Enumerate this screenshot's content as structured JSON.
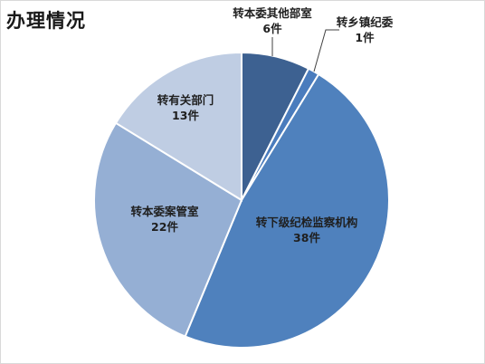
{
  "title": "办理情况",
  "chart_data": {
    "type": "pie",
    "title": "办理情况",
    "slices": [
      {
        "name": "转本委其他部室",
        "value": 6,
        "value_label": "6件",
        "color": "#3d6191"
      },
      {
        "name": "转乡镇纪委",
        "value": 1,
        "value_label": "1件",
        "color": "#4a7cbd"
      },
      {
        "name": "转下级纪检监察机构",
        "value": 38,
        "value_label": "38件",
        "color": "#4f81bd"
      },
      {
        "name": "转本委案管室",
        "value": 22,
        "value_label": "22件",
        "color": "#95afd4"
      },
      {
        "name": "转有关部门",
        "value": 13,
        "value_label": "13件",
        "color": "#bfcde3"
      }
    ],
    "start_angle_deg": 0,
    "direction": "clockwise",
    "legend": "none",
    "data_labels": "category-and-value"
  }
}
